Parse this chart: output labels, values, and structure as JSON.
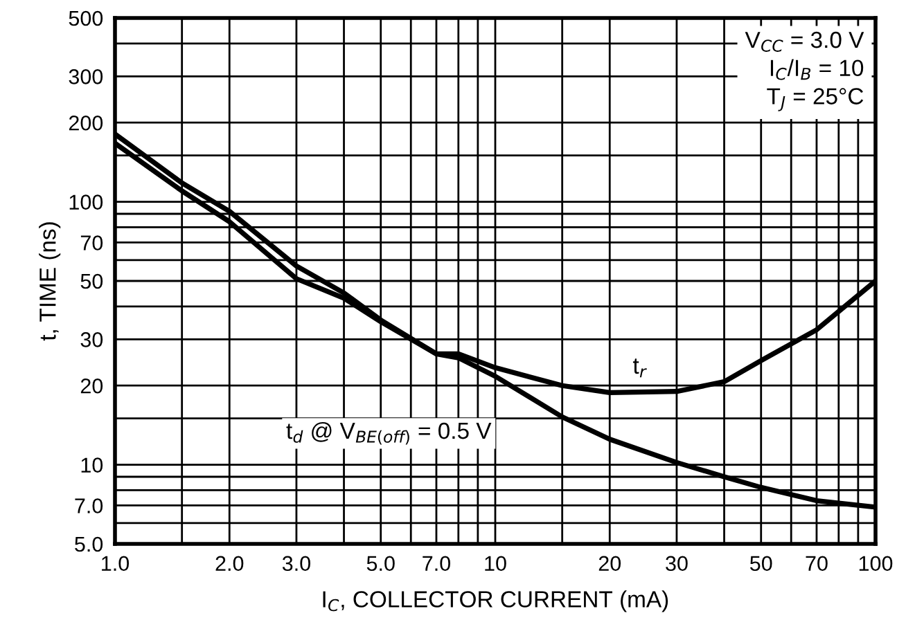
{
  "chart_data": {
    "type": "line",
    "xlabel": "I$_{C}$, COLLECTOR CURRENT (mA)",
    "ylabel": "t, TIME (ns)",
    "log": "xy",
    "grid": true,
    "legend": false,
    "marker": "none",
    "line_style": "solid",
    "xlim": [
      1,
      100
    ],
    "ylim": [
      5,
      500
    ],
    "xticks": [
      {
        "value": 1,
        "label": "1.0"
      },
      {
        "value": 1.5,
        "label": null
      },
      {
        "value": 2,
        "label": "2.0"
      },
      {
        "value": 3,
        "label": "3.0"
      },
      {
        "value": 4,
        "label": null
      },
      {
        "value": 5,
        "label": "5.0"
      },
      {
        "value": 6,
        "label": null
      },
      {
        "value": 7,
        "label": "7.0"
      },
      {
        "value": 8,
        "label": null
      },
      {
        "value": 9,
        "label": null
      },
      10,
      {
        "value": 15,
        "label": null
      },
      20,
      30,
      {
        "value": 40,
        "label": null
      },
      50,
      {
        "value": 60,
        "label": null
      },
      70,
      {
        "value": 80,
        "label": null
      },
      {
        "value": 90,
        "label": null
      },
      100
    ],
    "yticks": [
      {
        "value": 5,
        "label": "5.0"
      },
      {
        "value": 6,
        "label": null
      },
      {
        "value": 7,
        "label": "7.0"
      },
      {
        "value": 8,
        "label": null
      },
      {
        "value": 9,
        "label": null
      },
      10,
      {
        "value": 15,
        "label": null
      },
      20,
      30,
      {
        "value": 40,
        "label": null
      },
      50,
      {
        "value": 60,
        "label": null
      },
      70,
      {
        "value": 80,
        "label": null
      },
      {
        "value": 90,
        "label": null
      },
      100,
      {
        "value": 150,
        "label": null
      },
      200,
      300,
      {
        "value": 400,
        "label": null
      },
      500
    ],
    "annotations": [
      "V$_{CC}$ = 3.0 V\nI$_{C}$/I$_{B}$ = 10\nT$_{J}$ = 25°C"
    ],
    "series": [
      {
        "name": "t$_{d}$ @ V$_{BE(off)}$ = 0.5 V",
        "color": "#000000",
        "x": [
          1,
          1.5,
          2,
          3,
          4,
          5,
          7,
          8,
          10,
          15,
          20,
          30,
          40,
          50,
          70,
          100
        ],
        "values": [
          181,
          118,
          92,
          57,
          45,
          35.5,
          26.4,
          25.5,
          21.7,
          15.2,
          12.5,
          10.2,
          9.0,
          8.2,
          7.3,
          6.9
        ]
      },
      {
        "name": "t$_{r}$",
        "color": "#000000",
        "x": [
          1,
          1.5,
          2,
          3,
          4,
          5,
          7,
          8,
          10,
          15,
          20,
          30,
          40,
          50,
          70,
          100
        ],
        "values": [
          167,
          110,
          84,
          51,
          43,
          35,
          26.4,
          26.4,
          23.4,
          20.0,
          18.8,
          19.0,
          20.7,
          24.9,
          32.6,
          50
        ]
      }
    ]
  }
}
